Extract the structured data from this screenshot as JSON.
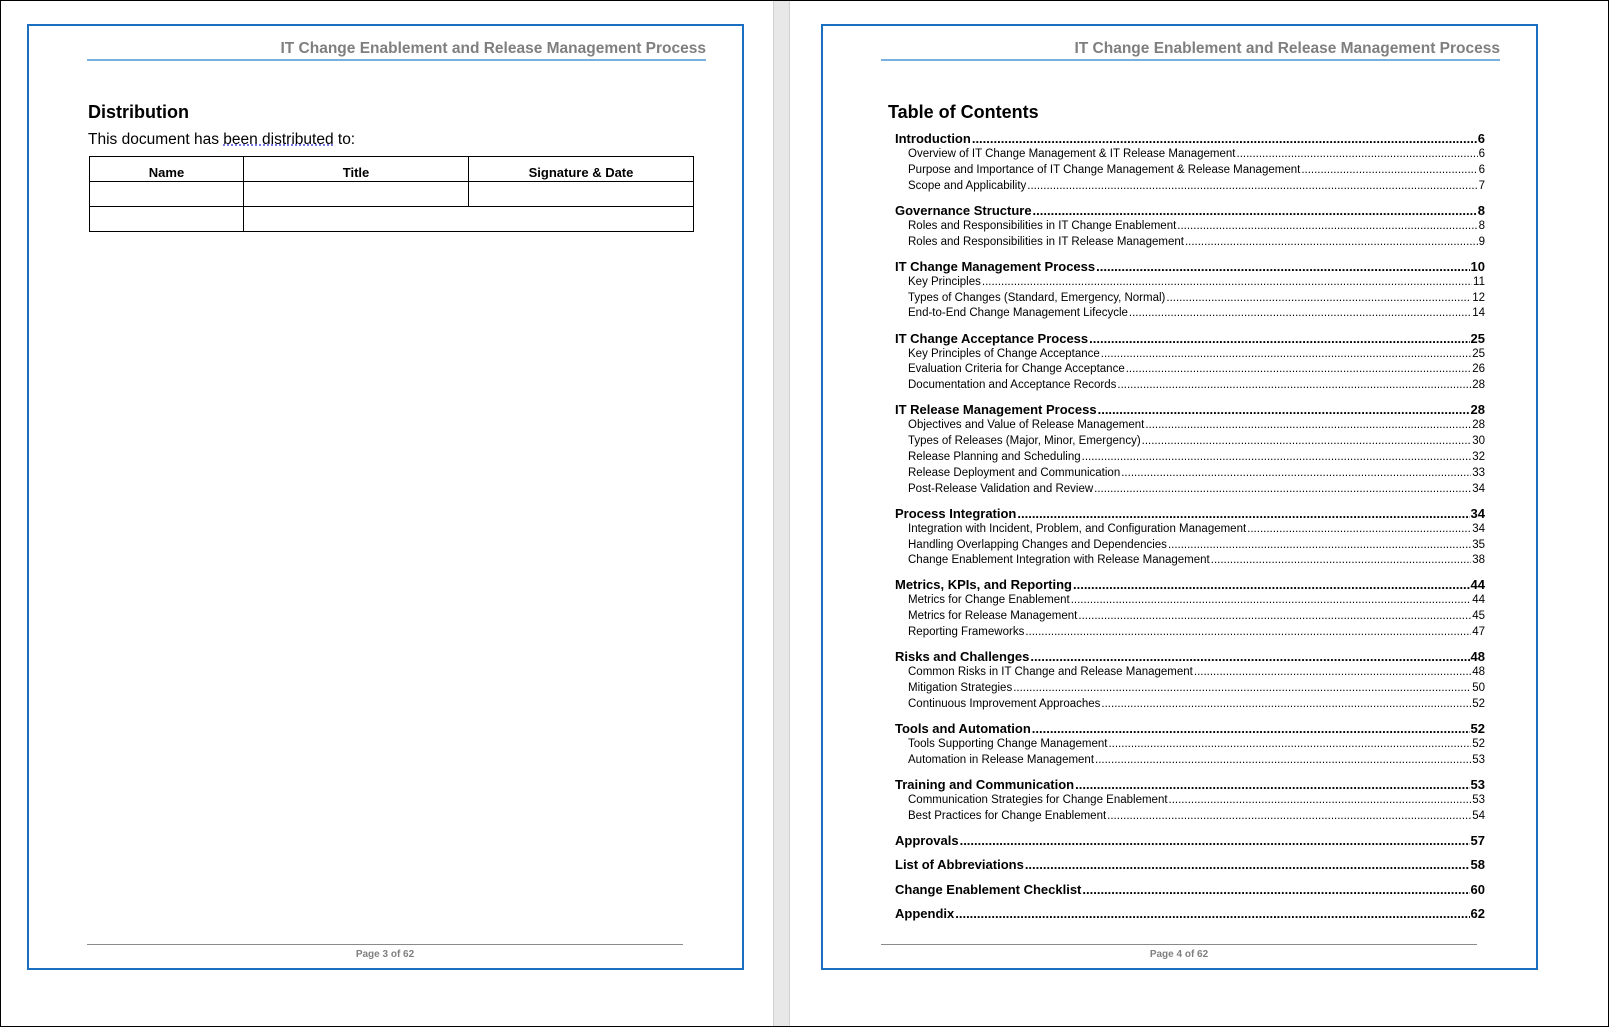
{
  "header_title": "IT Change Enablement and Release Management Process",
  "page3": {
    "heading": "Distribution",
    "intro_pre": "This document has ",
    "intro_underlined": "been distributed",
    "intro_post": " to:",
    "table_headers": [
      "Name",
      "Title",
      "Signature & Date"
    ],
    "footer": "Page 3 of 62"
  },
  "page4": {
    "heading": "Table of Contents",
    "footer": "Page 4 of 62",
    "toc": [
      {
        "t": "Introduction",
        "p": "6",
        "l": 1
      },
      {
        "t": "Overview of IT Change Management & IT Release Management",
        "p": "6",
        "l": 2
      },
      {
        "t": "Purpose and Importance of IT Change Management & Release Management",
        "p": "6",
        "l": 2
      },
      {
        "t": "Scope and Applicability",
        "p": "7",
        "l": 2
      },
      {
        "t": "Governance Structure",
        "p": "8",
        "l": 1
      },
      {
        "t": "Roles and Responsibilities in IT Change Enablement",
        "p": "8",
        "l": 2
      },
      {
        "t": "Roles and Responsibilities in IT Release Management",
        "p": "9",
        "l": 2
      },
      {
        "t": "IT Change Management Process",
        "p": "10",
        "l": 1
      },
      {
        "t": "Key Principles",
        "p": "11",
        "l": 2
      },
      {
        "t": "Types of Changes (Standard, Emergency, Normal)",
        "p": "12",
        "l": 2
      },
      {
        "t": "End-to-End Change Management Lifecycle",
        "p": "14",
        "l": 2
      },
      {
        "t": "IT Change Acceptance Process",
        "p": "25",
        "l": 1
      },
      {
        "t": "Key Principles of Change Acceptance",
        "p": "25",
        "l": 2
      },
      {
        "t": "Evaluation Criteria for Change Acceptance",
        "p": "26",
        "l": 2
      },
      {
        "t": "Documentation and Acceptance Records",
        "p": "28",
        "l": 2
      },
      {
        "t": "IT Release Management Process",
        "p": "28",
        "l": 1
      },
      {
        "t": "Objectives and Value of Release Management",
        "p": "28",
        "l": 2
      },
      {
        "t": "Types of Releases (Major, Minor, Emergency)",
        "p": "30",
        "l": 2
      },
      {
        "t": "Release Planning and Scheduling",
        "p": "32",
        "l": 2
      },
      {
        "t": "Release Deployment and Communication",
        "p": "33",
        "l": 2
      },
      {
        "t": "Post-Release Validation and Review",
        "p": "34",
        "l": 2
      },
      {
        "t": "Process Integration",
        "p": "34",
        "l": 1
      },
      {
        "t": "Integration with Incident, Problem, and Configuration Management",
        "p": "34",
        "l": 2
      },
      {
        "t": "Handling Overlapping Changes and Dependencies",
        "p": "35",
        "l": 2
      },
      {
        "t": "Change Enablement Integration with Release Management",
        "p": "38",
        "l": 2
      },
      {
        "t": "Metrics, KPIs, and Reporting",
        "p": "44",
        "l": 1
      },
      {
        "t": "Metrics for Change Enablement",
        "p": "44",
        "l": 2
      },
      {
        "t": "Metrics for Release Management",
        "p": "45",
        "l": 2
      },
      {
        "t": "Reporting Frameworks",
        "p": "47",
        "l": 2
      },
      {
        "t": "Risks and Challenges",
        "p": "48",
        "l": 1
      },
      {
        "t": "Common Risks in IT Change and Release Management",
        "p": "48",
        "l": 2
      },
      {
        "t": "Mitigation Strategies",
        "p": "50",
        "l": 2
      },
      {
        "t": "Continuous Improvement Approaches",
        "p": "52",
        "l": 2
      },
      {
        "t": "Tools and Automation",
        "p": "52",
        "l": 1
      },
      {
        "t": "Tools Supporting Change Management",
        "p": "52",
        "l": 2
      },
      {
        "t": "Automation in Release Management",
        "p": "53",
        "l": 2
      },
      {
        "t": "Training and Communication",
        "p": "53",
        "l": 1
      },
      {
        "t": "Communication Strategies for Change Enablement",
        "p": "53",
        "l": 2
      },
      {
        "t": "Best Practices for Change Enablement",
        "p": "54",
        "l": 2
      },
      {
        "t": "Approvals",
        "p": "57",
        "l": 1
      },
      {
        "t": "List of Abbreviations",
        "p": "58",
        "l": 1
      },
      {
        "t": "Change Enablement Checklist",
        "p": "60",
        "l": 1
      },
      {
        "t": "Appendix",
        "p": "62",
        "l": 1
      }
    ]
  },
  "colors": {
    "page_border": "#1a6fc0",
    "header_rule": "#7ab0e0",
    "header_text": "#7f7f7f"
  }
}
